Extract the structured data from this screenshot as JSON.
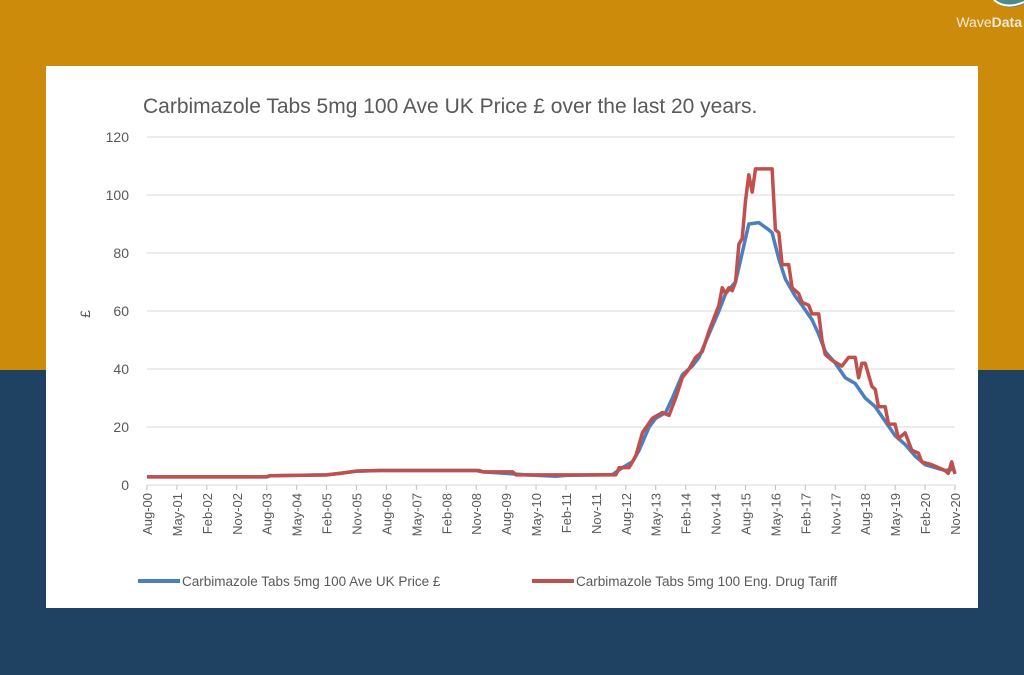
{
  "branding": {
    "logo_text_light": "Wave",
    "logo_text_bold": "Data"
  },
  "colors": {
    "background_top": "#cc8b0b",
    "background_bottom": "#1f4263",
    "series_blue": "#4a7fc1",
    "series_red": "#c0504d"
  },
  "chart_data": {
    "type": "line",
    "title": "Carbimazole Tabs 5mg 100 Ave UK Price £ over the last 20 years.",
    "xlabel": "",
    "ylabel": "£",
    "ylim": [
      0,
      120
    ],
    "yticks": [
      0,
      20,
      40,
      60,
      80,
      100,
      120
    ],
    "xticks": [
      "Aug-00",
      "May-01",
      "Feb-02",
      "Nov-02",
      "Aug-03",
      "May-04",
      "Feb-05",
      "Nov-05",
      "Aug-06",
      "May-07",
      "Feb-08",
      "Nov-08",
      "Aug-09",
      "May-10",
      "Feb-11",
      "Nov-11",
      "Aug-12",
      "May-13",
      "Feb-14",
      "Nov-14",
      "Aug-15",
      "May-16",
      "Feb-17",
      "Nov-17",
      "Aug-18",
      "May-19",
      "Feb-20",
      "Nov-20"
    ],
    "grid": true,
    "legend": "bottom",
    "series": [
      {
        "name": "Carbimazole Tabs 5mg 100 Ave UK Price £",
        "color": "#4a7fc1",
        "points": [
          [
            "Aug-00",
            2.8
          ],
          [
            "Aug-03",
            2.8
          ],
          [
            "Sep-03",
            3.2
          ],
          [
            "Feb-05",
            3.5
          ],
          [
            "Jun-05",
            4
          ],
          [
            "Nov-05",
            4.8
          ],
          [
            "Jun-06",
            5
          ],
          [
            "Nov-08",
            5
          ],
          [
            "Jan-09",
            4.5
          ],
          [
            "Aug-09",
            4
          ],
          [
            "Feb-10",
            3.5
          ],
          [
            "Nov-10",
            3
          ],
          [
            "Feb-11",
            3.3
          ],
          [
            "Nov-11",
            3.5
          ],
          [
            "Apr-12",
            3.6
          ],
          [
            "Jul-12",
            6
          ],
          [
            "Oct-12",
            8
          ],
          [
            "Dec-12",
            12
          ],
          [
            "Mar-13",
            20
          ],
          [
            "May-13",
            23
          ],
          [
            "Aug-13",
            25
          ],
          [
            "Oct-13",
            30
          ],
          [
            "Jan-14",
            38
          ],
          [
            "Apr-14",
            41
          ],
          [
            "Jun-14",
            44
          ],
          [
            "Sep-14",
            52
          ],
          [
            "Dec-14",
            60
          ],
          [
            "Feb-15",
            66
          ],
          [
            "May-15",
            70
          ],
          [
            "Jul-15",
            80
          ],
          [
            "Sep-15",
            90
          ],
          [
            "Dec-15",
            90.5
          ],
          [
            "Mar-16",
            88
          ],
          [
            "Apr-16",
            87
          ],
          [
            "Jun-16",
            78
          ],
          [
            "Aug-16",
            71
          ],
          [
            "Nov-16",
            65
          ],
          [
            "Jan-17",
            62
          ],
          [
            "Apr-17",
            57
          ],
          [
            "Jun-17",
            52
          ],
          [
            "Aug-17",
            46
          ],
          [
            "Nov-17",
            42
          ],
          [
            "Feb-18",
            37
          ],
          [
            "May-18",
            35
          ],
          [
            "Aug-18",
            30
          ],
          [
            "Nov-18",
            27
          ],
          [
            "Feb-19",
            22
          ],
          [
            "May-19",
            17
          ],
          [
            "Aug-19",
            14
          ],
          [
            "Nov-19",
            10
          ],
          [
            "Feb-20",
            7
          ],
          [
            "May-20",
            6
          ],
          [
            "Aug-20",
            5
          ],
          [
            "Nov-20",
            5.5
          ]
        ]
      },
      {
        "name": "Carbimazole Tabs 5mg 100 Eng. Drug Tariff",
        "color": "#c0504d",
        "points": [
          [
            "Aug-00",
            2.8
          ],
          [
            "Aug-03",
            2.8
          ],
          [
            "Sep-03",
            3.2
          ],
          [
            "Feb-05",
            3.5
          ],
          [
            "Jun-05",
            4
          ],
          [
            "Nov-05",
            4.8
          ],
          [
            "Jun-06",
            5
          ],
          [
            "Dec-08",
            5
          ],
          [
            "Jan-09",
            4.5
          ],
          [
            "Oct-09",
            4.5
          ],
          [
            "Nov-09",
            3.5
          ],
          [
            "Nov-11",
            3.5
          ],
          [
            "May-12",
            3.5
          ],
          [
            "Jun-12",
            6
          ],
          [
            "Sep-12",
            6
          ],
          [
            "Nov-12",
            10
          ],
          [
            "Jan-13",
            18
          ],
          [
            "Apr-13",
            23
          ],
          [
            "Jul-13",
            25
          ],
          [
            "Sep-13",
            24
          ],
          [
            "Nov-13",
            30
          ],
          [
            "Jan-14",
            37
          ],
          [
            "Mar-14",
            40
          ],
          [
            "May-14",
            44
          ],
          [
            "Jul-14",
            46
          ],
          [
            "Sep-14",
            53
          ],
          [
            "Dec-14",
            62
          ],
          [
            "Jan-15",
            68
          ],
          [
            "Feb-15",
            66
          ],
          [
            "Mar-15",
            68
          ],
          [
            "Apr-15",
            67
          ],
          [
            "May-15",
            70
          ],
          [
            "Jun-15",
            83
          ],
          [
            "Jul-15",
            85
          ],
          [
            "Aug-15",
            98
          ],
          [
            "Sep-15",
            107
          ],
          [
            "Oct-15",
            101
          ],
          [
            "Nov-15",
            109
          ],
          [
            "Apr-16",
            109
          ],
          [
            "May-16",
            88
          ],
          [
            "Jun-16",
            87
          ],
          [
            "Jul-16",
            76
          ],
          [
            "Sep-16",
            76
          ],
          [
            "Oct-16",
            68
          ],
          [
            "Dec-16",
            66
          ],
          [
            "Jan-17",
            63
          ],
          [
            "Mar-17",
            62
          ],
          [
            "Apr-17",
            59
          ],
          [
            "Jun-17",
            59
          ],
          [
            "Jul-17",
            50
          ],
          [
            "Aug-17",
            45
          ],
          [
            "Oct-17",
            43
          ],
          [
            "Jan-18",
            41
          ],
          [
            "Mar-18",
            44
          ],
          [
            "May-18",
            44
          ],
          [
            "Jun-18",
            37
          ],
          [
            "Jul-18",
            42
          ],
          [
            "Aug-18",
            42
          ],
          [
            "Oct-18",
            34
          ],
          [
            "Nov-18",
            33
          ],
          [
            "Dec-18",
            27
          ],
          [
            "Feb-19",
            27
          ],
          [
            "Mar-19",
            21
          ],
          [
            "May-19",
            21
          ],
          [
            "Jun-19",
            16
          ],
          [
            "Aug-19",
            18
          ],
          [
            "Oct-19",
            12
          ],
          [
            "Dec-19",
            11
          ],
          [
            "Jan-20",
            8
          ],
          [
            "Apr-20",
            7
          ],
          [
            "Jun-20",
            6
          ],
          [
            "Aug-20",
            5
          ],
          [
            "Sep-20",
            4
          ],
          [
            "Oct-20",
            8
          ],
          [
            "Nov-20",
            3.8
          ]
        ]
      }
    ]
  }
}
